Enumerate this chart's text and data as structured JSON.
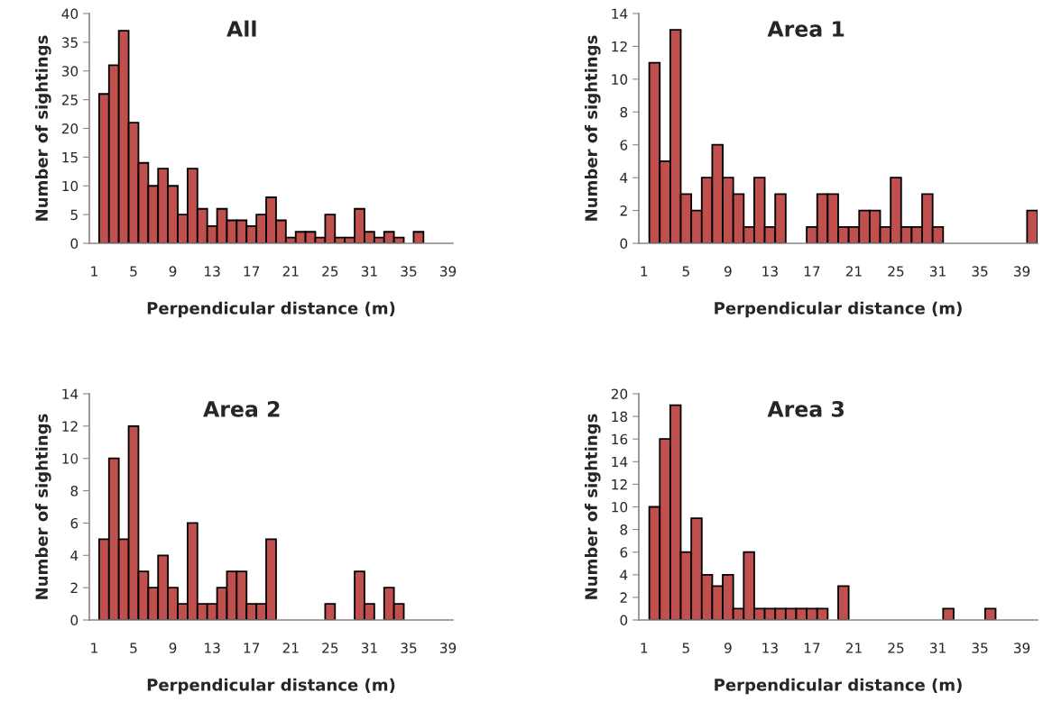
{
  "chart_data": [
    {
      "type": "bar",
      "title": "All",
      "xlabel": "Perpendicular distance (m)",
      "ylabel": "Number of sightings",
      "categories": [
        "1",
        null,
        null,
        null,
        "5",
        null,
        null,
        null,
        "9",
        null,
        null,
        null,
        "13",
        null,
        null,
        null,
        "17",
        null,
        null,
        null,
        "21",
        null,
        null,
        null,
        "25",
        null,
        null,
        null,
        "31",
        null,
        null,
        null,
        "35",
        null,
        null,
        null,
        "39"
      ],
      "values": [
        null,
        26,
        31,
        37,
        21,
        14,
        10,
        13,
        10,
        5,
        13,
        6,
        3,
        6,
        4,
        4,
        3,
        5,
        8,
        4,
        1,
        2,
        2,
        1,
        5,
        1,
        1,
        6,
        2,
        1,
        2,
        1,
        null,
        2,
        null,
        null,
        null
      ],
      "color": "#c0504d",
      "ylim": [
        0,
        40
      ],
      "yticks": [
        0,
        5,
        10,
        15,
        20,
        25,
        30,
        35,
        40
      ],
      "grid": false,
      "legend": false
    },
    {
      "type": "bar",
      "title": "Area 1",
      "xlabel": "Perpendicular distance (m)",
      "ylabel": "Number of sightings",
      "categories": [
        "1",
        null,
        null,
        null,
        "5",
        null,
        null,
        null,
        "9",
        null,
        null,
        null,
        "13",
        null,
        null,
        null,
        "17",
        null,
        null,
        null,
        "21",
        null,
        null,
        null,
        "25",
        null,
        null,
        null,
        "31",
        null,
        null,
        null,
        "35",
        null,
        null,
        null,
        "39",
        null
      ],
      "values": [
        null,
        11,
        5,
        13,
        3,
        2,
        4,
        6,
        4,
        3,
        1,
        4,
        1,
        3,
        null,
        null,
        1,
        3,
        3,
        1,
        1,
        2,
        2,
        1,
        4,
        1,
        1,
        3,
        1,
        null,
        null,
        null,
        null,
        null,
        null,
        null,
        null,
        2
      ],
      "color": "#c0504d",
      "ylim": [
        0,
        14
      ],
      "yticks": [
        0,
        2,
        4,
        6,
        8,
        10,
        12,
        14
      ],
      "grid": false,
      "legend": false
    },
    {
      "type": "bar",
      "title": "Area 2",
      "xlabel": "Perpendicular distance (m)",
      "ylabel": "Number of sightings",
      "categories": [
        "1",
        null,
        null,
        null,
        "5",
        null,
        null,
        null,
        "9",
        null,
        null,
        null,
        "13",
        null,
        null,
        null,
        "17",
        null,
        null,
        null,
        "21",
        null,
        null,
        null,
        "25",
        null,
        null,
        null,
        "31",
        null,
        null,
        null,
        "35",
        null,
        null,
        null,
        "39"
      ],
      "values": [
        null,
        5,
        10,
        5,
        12,
        3,
        2,
        4,
        2,
        1,
        6,
        1,
        1,
        2,
        3,
        3,
        1,
        1,
        5,
        null,
        null,
        null,
        null,
        null,
        1,
        null,
        null,
        3,
        1,
        null,
        2,
        1,
        null,
        null,
        null,
        null,
        null
      ],
      "color": "#c0504d",
      "ylim": [
        0,
        14
      ],
      "yticks": [
        0,
        2,
        4,
        6,
        8,
        10,
        12,
        14
      ],
      "grid": false,
      "legend": false
    },
    {
      "type": "bar",
      "title": "Area 3",
      "xlabel": "Perpendicular distance (m)",
      "ylabel": "Number of sightings",
      "categories": [
        "1",
        null,
        null,
        null,
        "5",
        null,
        null,
        null,
        "9",
        null,
        null,
        null,
        "13",
        null,
        null,
        null,
        "17",
        null,
        null,
        null,
        "21",
        null,
        null,
        null,
        "25",
        null,
        null,
        null,
        "31",
        null,
        null,
        null,
        "35",
        null,
        null,
        null,
        "39",
        null
      ],
      "values": [
        null,
        10,
        16,
        19,
        6,
        9,
        4,
        3,
        4,
        1,
        6,
        1,
        1,
        1,
        1,
        1,
        1,
        1,
        null,
        3,
        null,
        null,
        null,
        null,
        null,
        null,
        null,
        null,
        null,
        1,
        null,
        null,
        null,
        1,
        null,
        null,
        null,
        null
      ],
      "color": "#c0504d",
      "ylim": [
        0,
        20
      ],
      "yticks": [
        0,
        2,
        4,
        6,
        8,
        10,
        12,
        14,
        16,
        18,
        20
      ],
      "grid": false,
      "legend": false
    }
  ]
}
